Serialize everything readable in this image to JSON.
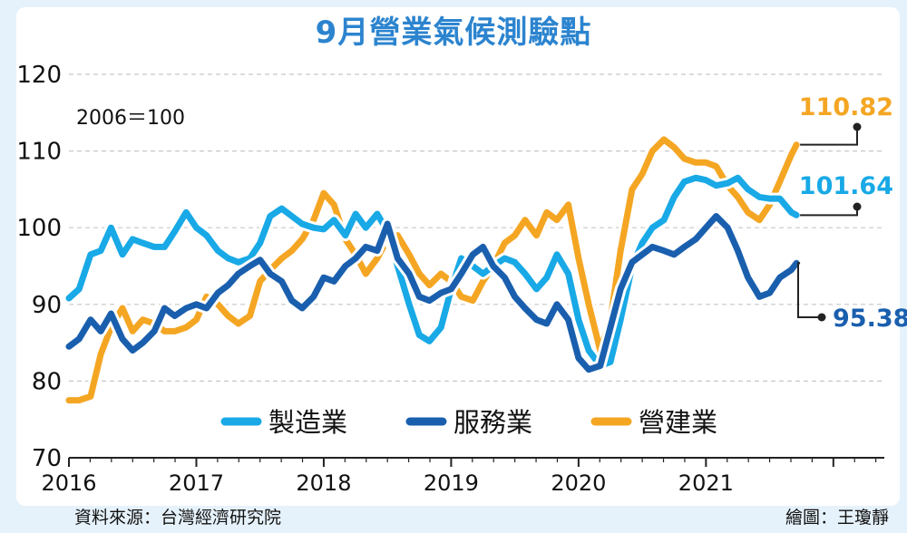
{
  "header": {
    "title": "9月營業氣候測驗點",
    "base_note": "2006＝100"
  },
  "footer": {
    "source": "資料來源：台灣經濟研究院",
    "credit": "繪圖：王瓊靜"
  },
  "colors": {
    "background": "#e6f2fb",
    "title": "#2c84cf",
    "grid": "#c8c8c8",
    "axis": "#222222"
  },
  "chart_data": {
    "type": "line",
    "title": "9月營業氣候測驗點",
    "subtitle": "2006＝100",
    "xlabel": "",
    "ylabel": "",
    "x_ticks": [
      "2016",
      "2017",
      "2018",
      "2019",
      "2020",
      "2021"
    ],
    "x_range": [
      2016.0,
      2022.4
    ],
    "ylim": [
      70,
      120
    ],
    "y_ticks": [
      70,
      80,
      90,
      100,
      110,
      120
    ],
    "grid": "horizontal dotted",
    "legend_position": "bottom-center",
    "series": [
      {
        "name": "製造業",
        "color": "#18a9e6",
        "end_label": "101.64",
        "label_color": "#18a9e6",
        "points": [
          [
            2016.0,
            90.8
          ],
          [
            2016.08,
            92
          ],
          [
            2016.17,
            96.5
          ],
          [
            2016.25,
            97
          ],
          [
            2016.33,
            100
          ],
          [
            2016.42,
            96.5
          ],
          [
            2016.5,
            98.5
          ],
          [
            2016.58,
            98
          ],
          [
            2016.67,
            97.5
          ],
          [
            2016.75,
            97.5
          ],
          [
            2016.83,
            99.5
          ],
          [
            2016.92,
            102
          ],
          [
            2017.0,
            100
          ],
          [
            2017.08,
            99
          ],
          [
            2017.17,
            97
          ],
          [
            2017.25,
            96
          ],
          [
            2017.33,
            95.5
          ],
          [
            2017.42,
            96
          ],
          [
            2017.5,
            98
          ],
          [
            2017.58,
            101.5
          ],
          [
            2017.67,
            102.5
          ],
          [
            2017.75,
            101.5
          ],
          [
            2017.83,
            100.5
          ],
          [
            2017.92,
            100
          ],
          [
            2018.0,
            99.8
          ],
          [
            2018.08,
            101
          ],
          [
            2018.17,
            99
          ],
          [
            2018.25,
            101.8
          ],
          [
            2018.33,
            100
          ],
          [
            2018.42,
            101.8
          ],
          [
            2018.5,
            99.5
          ],
          [
            2018.58,
            95
          ],
          [
            2018.67,
            90
          ],
          [
            2018.75,
            86
          ],
          [
            2018.83,
            85.2
          ],
          [
            2018.92,
            87
          ],
          [
            2019.0,
            92
          ],
          [
            2019.08,
            96
          ],
          [
            2019.17,
            95
          ],
          [
            2019.25,
            94
          ],
          [
            2019.33,
            95
          ],
          [
            2019.42,
            96
          ],
          [
            2019.5,
            95.5
          ],
          [
            2019.58,
            94
          ],
          [
            2019.67,
            92
          ],
          [
            2019.75,
            93.5
          ],
          [
            2019.83,
            96.5
          ],
          [
            2019.92,
            94
          ],
          [
            2020.0,
            88
          ],
          [
            2020.08,
            84
          ],
          [
            2020.17,
            82
          ],
          [
            2020.25,
            82.5
          ],
          [
            2020.33,
            88
          ],
          [
            2020.42,
            95
          ],
          [
            2020.5,
            98
          ],
          [
            2020.58,
            100
          ],
          [
            2020.67,
            101
          ],
          [
            2020.75,
            104
          ],
          [
            2020.83,
            106
          ],
          [
            2020.92,
            106.5
          ],
          [
            2021.0,
            106.2
          ],
          [
            2021.08,
            105.5
          ],
          [
            2021.17,
            105.8
          ],
          [
            2021.25,
            106.5
          ],
          [
            2021.33,
            105
          ],
          [
            2021.42,
            104
          ],
          [
            2021.5,
            103.8
          ],
          [
            2021.58,
            103.8
          ],
          [
            2021.67,
            102
          ],
          [
            2021.71,
            101.64
          ]
        ]
      },
      {
        "name": "服務業",
        "color": "#1a5fae",
        "end_label": "95.38",
        "label_color": "#1a5fae",
        "points": [
          [
            2016.0,
            84.5
          ],
          [
            2016.08,
            85.5
          ],
          [
            2016.17,
            88
          ],
          [
            2016.25,
            86.5
          ],
          [
            2016.33,
            88.8
          ],
          [
            2016.42,
            85.5
          ],
          [
            2016.5,
            84
          ],
          [
            2016.58,
            85
          ],
          [
            2016.67,
            86.5
          ],
          [
            2016.75,
            89.5
          ],
          [
            2016.83,
            88.5
          ],
          [
            2016.92,
            89.5
          ],
          [
            2017.0,
            90
          ],
          [
            2017.08,
            89.5
          ],
          [
            2017.17,
            91.5
          ],
          [
            2017.25,
            92.5
          ],
          [
            2017.33,
            94
          ],
          [
            2017.42,
            95
          ],
          [
            2017.5,
            95.8
          ],
          [
            2017.58,
            94
          ],
          [
            2017.67,
            93
          ],
          [
            2017.75,
            90.5
          ],
          [
            2017.83,
            89.5
          ],
          [
            2017.92,
            91
          ],
          [
            2018.0,
            93.5
          ],
          [
            2018.08,
            93
          ],
          [
            2018.17,
            95
          ],
          [
            2018.25,
            96
          ],
          [
            2018.33,
            97.5
          ],
          [
            2018.42,
            97
          ],
          [
            2018.5,
            100.5
          ],
          [
            2018.58,
            96
          ],
          [
            2018.67,
            94
          ],
          [
            2018.75,
            91
          ],
          [
            2018.83,
            90.5
          ],
          [
            2018.92,
            91.5
          ],
          [
            2019.0,
            92
          ],
          [
            2019.08,
            94
          ],
          [
            2019.17,
            96.5
          ],
          [
            2019.25,
            97.5
          ],
          [
            2019.33,
            95
          ],
          [
            2019.42,
            93.5
          ],
          [
            2019.5,
            91
          ],
          [
            2019.58,
            89.5
          ],
          [
            2019.67,
            88
          ],
          [
            2019.75,
            87.5
          ],
          [
            2019.83,
            90
          ],
          [
            2019.92,
            88
          ],
          [
            2020.0,
            83
          ],
          [
            2020.08,
            81.5
          ],
          [
            2020.17,
            82
          ],
          [
            2020.25,
            87
          ],
          [
            2020.33,
            92
          ],
          [
            2020.42,
            95.5
          ],
          [
            2020.5,
            96.5
          ],
          [
            2020.58,
            97.5
          ],
          [
            2020.67,
            97
          ],
          [
            2020.75,
            96.5
          ],
          [
            2020.83,
            97.5
          ],
          [
            2020.92,
            98.5
          ],
          [
            2021.0,
            100
          ],
          [
            2021.08,
            101.5
          ],
          [
            2021.17,
            100
          ],
          [
            2021.25,
            97
          ],
          [
            2021.33,
            93.5
          ],
          [
            2021.42,
            91
          ],
          [
            2021.5,
            91.5
          ],
          [
            2021.58,
            93.5
          ],
          [
            2021.67,
            94.5
          ],
          [
            2021.71,
            95.38
          ]
        ]
      },
      {
        "name": "營建業",
        "color": "#f4a623",
        "end_label": "110.82",
        "label_color": "#f4a623",
        "points": [
          [
            2016.0,
            77.5
          ],
          [
            2016.08,
            77.5
          ],
          [
            2016.17,
            78
          ],
          [
            2016.25,
            83.5
          ],
          [
            2016.33,
            87
          ],
          [
            2016.42,
            89.5
          ],
          [
            2016.5,
            86.5
          ],
          [
            2016.58,
            88
          ],
          [
            2016.67,
            87.5
          ],
          [
            2016.75,
            86.5
          ],
          [
            2016.83,
            86.5
          ],
          [
            2016.92,
            87
          ],
          [
            2017.0,
            88
          ],
          [
            2017.08,
            91
          ],
          [
            2017.17,
            90
          ],
          [
            2017.25,
            88.5
          ],
          [
            2017.33,
            87.5
          ],
          [
            2017.42,
            88.5
          ],
          [
            2017.5,
            93
          ],
          [
            2017.58,
            94.5
          ],
          [
            2017.67,
            96
          ],
          [
            2017.75,
            97
          ],
          [
            2017.83,
            98.5
          ],
          [
            2017.92,
            101
          ],
          [
            2018.0,
            104.5
          ],
          [
            2018.08,
            103
          ],
          [
            2018.17,
            98.5
          ],
          [
            2018.25,
            96.5
          ],
          [
            2018.33,
            94
          ],
          [
            2018.42,
            96
          ],
          [
            2018.5,
            98.5
          ],
          [
            2018.58,
            99
          ],
          [
            2018.67,
            96.5
          ],
          [
            2018.75,
            94
          ],
          [
            2018.83,
            92.5
          ],
          [
            2018.92,
            94
          ],
          [
            2019.0,
            93
          ],
          [
            2019.08,
            91
          ],
          [
            2019.17,
            90.5
          ],
          [
            2019.25,
            93
          ],
          [
            2019.33,
            95
          ],
          [
            2019.42,
            98
          ],
          [
            2019.5,
            99
          ],
          [
            2019.58,
            101
          ],
          [
            2019.67,
            99
          ],
          [
            2019.75,
            102
          ],
          [
            2019.83,
            101
          ],
          [
            2019.92,
            103
          ],
          [
            2020.0,
            96
          ],
          [
            2020.08,
            90
          ],
          [
            2020.17,
            84
          ],
          [
            2020.25,
            88
          ],
          [
            2020.33,
            97
          ],
          [
            2020.42,
            105
          ],
          [
            2020.5,
            107
          ],
          [
            2020.58,
            110
          ],
          [
            2020.67,
            111.5
          ],
          [
            2020.75,
            110.5
          ],
          [
            2020.83,
            109
          ],
          [
            2020.92,
            108.5
          ],
          [
            2021.0,
            108.5
          ],
          [
            2021.08,
            108
          ],
          [
            2021.17,
            105.5
          ],
          [
            2021.25,
            104
          ],
          [
            2021.33,
            102
          ],
          [
            2021.42,
            101
          ],
          [
            2021.5,
            103
          ],
          [
            2021.58,
            106
          ],
          [
            2021.67,
            109.5
          ],
          [
            2021.71,
            110.82
          ]
        ]
      }
    ]
  }
}
